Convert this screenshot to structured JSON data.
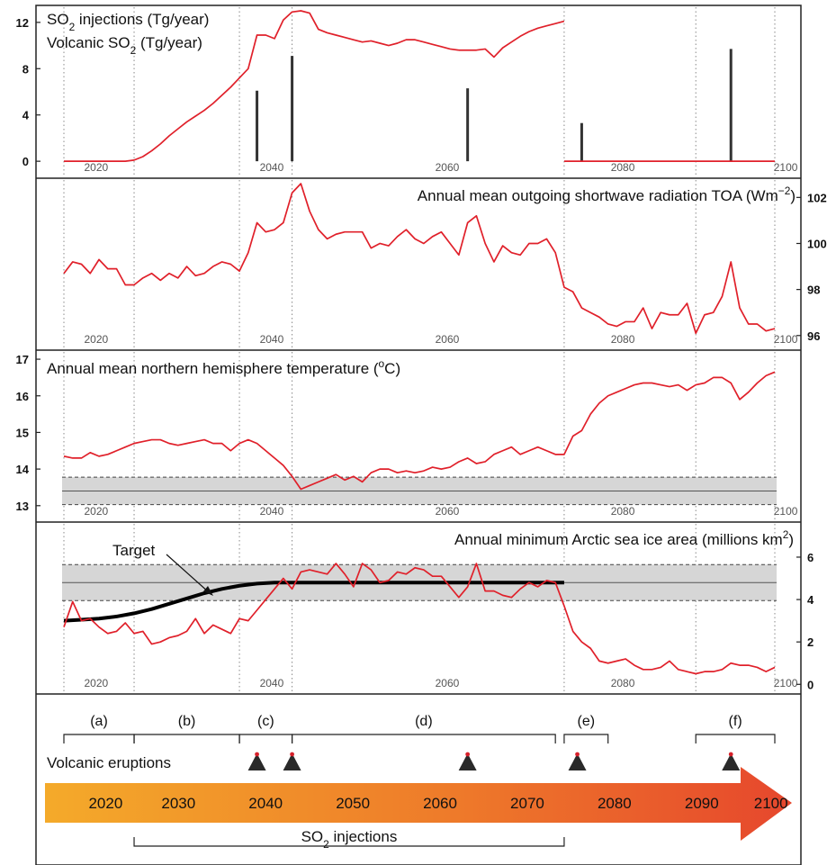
{
  "chart_data": [
    {
      "type": "line",
      "title_lines": [
        "SO2 injections (Tg/year)",
        "Volcanic SO2 (Tg/year)"
      ],
      "ylim": [
        -1,
        13
      ],
      "yticks": [
        "0",
        "4",
        "8",
        "12"
      ],
      "ytick_values": [
        0,
        4,
        8,
        12
      ],
      "y_axis_side": "left",
      "x_tick_labels": [
        "2020",
        "2040",
        "2060",
        "2080",
        "2100"
      ],
      "series": [
        {
          "name": "SO2 injections",
          "color": "#e0202a",
          "x": [
            2018,
            2025,
            2026,
            2027,
            2028,
            2029,
            2030,
            2031,
            2032,
            2033,
            2034,
            2035,
            2036,
            2037,
            2038,
            2039,
            2040,
            2041,
            2042,
            2043,
            2044,
            2045,
            2046,
            2047,
            2048,
            2049,
            2050,
            2051,
            2052,
            2053,
            2054,
            2055,
            2056,
            2057,
            2058,
            2059,
            2060,
            2061,
            2062,
            2063,
            2064,
            2065,
            2066,
            2067,
            2068,
            2069,
            2070,
            2071,
            2072,
            2073,
            2074,
            2075
          ],
          "y": [
            0,
            0,
            0.1,
            0.4,
            0.9,
            1.5,
            2.2,
            2.8,
            3.4,
            3.9,
            4.4,
            5.0,
            5.7,
            6.4,
            7.2,
            8.0,
            10.9,
            10.9,
            10.6,
            12.2,
            12.9,
            13.0,
            12.8,
            11.4,
            11.1,
            10.9,
            10.7,
            10.5,
            10.3,
            10.4,
            10.2,
            10.0,
            10.2,
            10.5,
            10.5,
            10.3,
            10.1,
            9.9,
            9.7,
            9.6,
            9.6,
            9.6,
            9.7,
            9.0,
            9.8,
            10.3,
            10.8,
            11.2,
            11.5,
            11.7,
            11.9,
            12.1
          ]
        },
        {
          "name": "SO2 injections",
          "color": "#e0202a",
          "x": [
            2075,
            2099
          ],
          "y": [
            0,
            0
          ]
        }
      ],
      "spikes": {
        "color": "#333333",
        "x": [
          2040,
          2044,
          2064,
          2077,
          2094
        ],
        "y": [
          6.1,
          9.1,
          6.3,
          3.3,
          9.7
        ]
      }
    },
    {
      "type": "line",
      "title": "Annual mean outgoing shortwave radiation TOA (Wm⁻²)",
      "ylim": [
        95.6,
        102.6
      ],
      "yticks": [
        "96",
        "98",
        "100",
        "102"
      ],
      "ytick_values": [
        96,
        98,
        100,
        102
      ],
      "y_axis_side": "right",
      "x_tick_labels": [
        "2020",
        "2040",
        "2060",
        "2080",
        "2100"
      ],
      "series": [
        {
          "name": "",
          "color": "#e0202a",
          "x": [
            2018,
            2019,
            2020,
            2021,
            2022,
            2023,
            2024,
            2025,
            2026,
            2027,
            2028,
            2029,
            2030,
            2031,
            2032,
            2033,
            2034,
            2035,
            2036,
            2037,
            2038,
            2039,
            2040,
            2041,
            2042,
            2043,
            2044,
            2045,
            2046,
            2047,
            2048,
            2049,
            2050,
            2051,
            2052,
            2053,
            2054,
            2055,
            2056,
            2057,
            2058,
            2059,
            2060,
            2061,
            2062,
            2063,
            2064,
            2065,
            2066,
            2067,
            2068,
            2069,
            2070,
            2071,
            2072,
            2073,
            2074,
            2075,
            2076,
            2077,
            2078,
            2079,
            2080,
            2081,
            2082,
            2083,
            2084,
            2085,
            2086,
            2087,
            2088,
            2089,
            2090,
            2091,
            2092,
            2093,
            2094,
            2095,
            2096,
            2097,
            2098,
            2099
          ],
          "y": [
            98.7,
            99.2,
            99.1,
            98.7,
            99.3,
            98.9,
            98.9,
            98.2,
            98.2,
            98.5,
            98.7,
            98.4,
            98.7,
            98.5,
            99.0,
            98.6,
            98.7,
            99.0,
            99.2,
            99.1,
            98.8,
            99.6,
            100.9,
            100.5,
            100.6,
            100.9,
            102.2,
            102.6,
            101.4,
            100.6,
            100.2,
            100.4,
            100.5,
            100.5,
            100.5,
            99.8,
            100.0,
            99.9,
            100.3,
            100.6,
            100.2,
            100.0,
            100.3,
            100.5,
            100.0,
            99.5,
            100.9,
            101.2,
            100.0,
            99.2,
            99.9,
            99.6,
            99.5,
            100.0,
            100.0,
            100.2,
            99.6,
            98.1,
            97.9,
            97.2,
            97.0,
            96.8,
            96.5,
            96.4,
            96.6,
            96.6,
            97.2,
            96.3,
            97.0,
            96.9,
            96.9,
            97.4,
            96.1,
            96.9,
            97.0,
            97.7,
            99.2,
            97.2,
            96.5,
            96.5,
            96.2,
            96.3
          ]
        }
      ]
    },
    {
      "type": "line",
      "title": "Annual mean northern hemisphere temperature (°C)",
      "ylim": [
        12.7,
        17.1
      ],
      "yticks": [
        "13",
        "14",
        "15",
        "16",
        "17"
      ],
      "ytick_values": [
        13,
        14,
        15,
        16,
        17
      ],
      "y_axis_side": "left",
      "x_tick_labels": [
        "2020",
        "2040",
        "2060",
        "2080",
        "2100"
      ],
      "band": {
        "low": 13.03,
        "high": 13.78,
        "mid": 13.4
      },
      "series": [
        {
          "name": "",
          "color": "#e0202a",
          "x": [
            2018,
            2019,
            2020,
            2021,
            2022,
            2023,
            2024,
            2025,
            2026,
            2027,
            2028,
            2029,
            2030,
            2031,
            2032,
            2033,
            2034,
            2035,
            2036,
            2037,
            2038,
            2039,
            2040,
            2041,
            2042,
            2043,
            2044,
            2045,
            2046,
            2047,
            2048,
            2049,
            2050,
            2051,
            2052,
            2053,
            2054,
            2055,
            2056,
            2057,
            2058,
            2059,
            2060,
            2061,
            2062,
            2063,
            2064,
            2065,
            2066,
            2067,
            2068,
            2069,
            2070,
            2071,
            2072,
            2073,
            2074,
            2075,
            2076,
            2077,
            2078,
            2079,
            2080,
            2081,
            2082,
            2083,
            2084,
            2085,
            2086,
            2087,
            2088,
            2089,
            2090,
            2091,
            2092,
            2093,
            2094,
            2095,
            2096,
            2097,
            2098,
            2099
          ],
          "y": [
            14.35,
            14.3,
            14.3,
            14.45,
            14.35,
            14.4,
            14.5,
            14.6,
            14.7,
            14.75,
            14.8,
            14.8,
            14.7,
            14.65,
            14.7,
            14.75,
            14.8,
            14.7,
            14.7,
            14.5,
            14.7,
            14.8,
            14.7,
            14.5,
            14.3,
            14.1,
            13.8,
            13.45,
            13.55,
            13.65,
            13.75,
            13.85,
            13.7,
            13.8,
            13.65,
            13.9,
            14.0,
            14.0,
            13.9,
            13.95,
            13.9,
            13.95,
            14.05,
            14.0,
            14.05,
            14.2,
            14.3,
            14.15,
            14.2,
            14.4,
            14.5,
            14.6,
            14.4,
            14.5,
            14.6,
            14.5,
            14.4,
            14.4,
            14.9,
            15.05,
            15.5,
            15.8,
            16.0,
            16.1,
            16.2,
            16.3,
            16.35,
            16.35,
            16.3,
            16.25,
            16.3,
            16.15,
            16.3,
            16.35,
            16.5,
            16.5,
            16.35,
            15.9,
            16.1,
            16.35,
            16.55,
            16.65
          ]
        }
      ]
    },
    {
      "type": "line",
      "title": "Annual minimum Arctic sea ice area (millions km²)",
      "ylim": [
        -0.2,
        7.4
      ],
      "yticks": [
        "0",
        "2",
        "4",
        "6"
      ],
      "ytick_values": [
        0,
        2,
        4,
        6
      ],
      "y_axis_side": "right",
      "x_tick_labels": [
        "2020",
        "2040",
        "2060",
        "2080",
        "2100"
      ],
      "band": {
        "low": 3.95,
        "high": 5.65,
        "mid": 4.8
      },
      "target_label": "Target",
      "target_curve": {
        "x": [
          2018,
          2020,
          2022,
          2024,
          2026,
          2028,
          2030,
          2032,
          2034,
          2036,
          2038,
          2040,
          2042,
          2044,
          2046,
          2050,
          2060,
          2070,
          2075
        ],
        "y": [
          3.0,
          3.05,
          3.1,
          3.2,
          3.35,
          3.55,
          3.8,
          4.05,
          4.3,
          4.5,
          4.65,
          4.75,
          4.8,
          4.8,
          4.8,
          4.8,
          4.8,
          4.8,
          4.8
        ]
      },
      "series": [
        {
          "name": "",
          "color": "#e0202a",
          "x": [
            2018,
            2019,
            2020,
            2021,
            2022,
            2023,
            2024,
            2025,
            2026,
            2027,
            2028,
            2029,
            2030,
            2031,
            2032,
            2033,
            2034,
            2035,
            2036,
            2037,
            2038,
            2039,
            2040,
            2041,
            2042,
            2043,
            2044,
            2045,
            2046,
            2047,
            2048,
            2049,
            2050,
            2051,
            2052,
            2053,
            2054,
            2055,
            2056,
            2057,
            2058,
            2059,
            2060,
            2061,
            2062,
            2063,
            2064,
            2065,
            2066,
            2067,
            2068,
            2069,
            2070,
            2071,
            2072,
            2073,
            2074,
            2075,
            2076,
            2077,
            2078,
            2079,
            2080,
            2081,
            2082,
            2083,
            2084,
            2085,
            2086,
            2087,
            2088,
            2089,
            2090,
            2091,
            2092,
            2093,
            2094,
            2095,
            2096,
            2097,
            2098,
            2099
          ],
          "y": [
            2.7,
            3.9,
            3.0,
            3.1,
            2.7,
            2.4,
            2.5,
            2.9,
            2.4,
            2.5,
            1.9,
            2.0,
            2.2,
            2.3,
            2.5,
            3.1,
            2.4,
            2.8,
            2.6,
            2.4,
            3.1,
            3.0,
            3.5,
            4.0,
            4.5,
            5.0,
            4.5,
            5.3,
            5.4,
            5.3,
            5.2,
            5.7,
            5.2,
            4.6,
            5.7,
            5.4,
            4.8,
            4.9,
            5.3,
            5.2,
            5.5,
            5.4,
            5.1,
            5.1,
            4.6,
            4.1,
            4.6,
            5.7,
            4.4,
            4.4,
            4.2,
            4.1,
            4.5,
            4.8,
            4.6,
            4.9,
            4.8,
            3.7,
            2.5,
            2.0,
            1.7,
            1.1,
            1.0,
            1.1,
            1.2,
            0.9,
            0.7,
            0.7,
            0.8,
            1.1,
            0.7,
            0.6,
            0.5,
            0.6,
            0.6,
            0.7,
            1.0,
            0.9,
            0.9,
            0.8,
            0.6,
            0.8
          ]
        }
      ]
    }
  ],
  "timeline": {
    "phases": [
      {
        "label": "(a)",
        "start": 2018,
        "end": 2026
      },
      {
        "label": "(b)",
        "start": 2026,
        "end": 2038
      },
      {
        "label": "(c)",
        "start": 2038,
        "end": 2044
      },
      {
        "label": "(d)",
        "start": 2044,
        "end": 2074
      },
      {
        "label": "(e)",
        "start": 2075,
        "end": 2080
      },
      {
        "label": "(f)",
        "start": 2090,
        "end": 2099
      }
    ],
    "eruptions_label": "Volcanic eruptions",
    "eruption_years": [
      2040,
      2044,
      2064,
      2076.5,
      2094
    ],
    "arrow_years": [
      "2020",
      "2030",
      "2040",
      "2050",
      "2060",
      "2070",
      "2080",
      "2090",
      "2100"
    ],
    "injections_label": "SO2 injections",
    "injections_start": 2026,
    "injections_end": 2075
  }
}
